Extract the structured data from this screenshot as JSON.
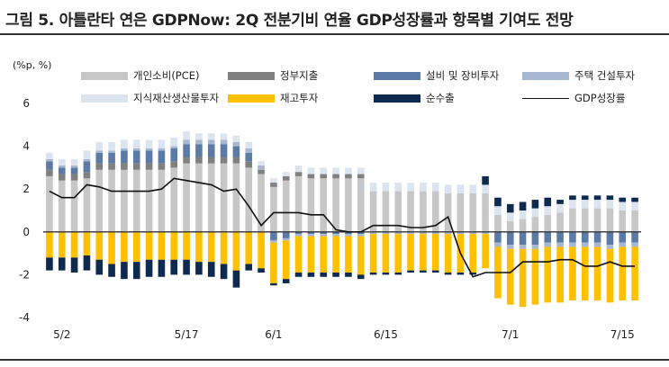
{
  "title": "그림 5. 아틀란타 연은 GDPNow: 2Q 전분기비 연율 GDP성장률과 항목별 기여도 전망",
  "unit": "(%p, %)",
  "chart_data": {
    "type": "bar",
    "stacked": true,
    "ylim": [
      -4,
      6
    ],
    "yticks": [
      -4,
      -2,
      0,
      2,
      4,
      6
    ],
    "xtick_labels": [
      {
        "index": 1,
        "label": "5/2"
      },
      {
        "index": 11,
        "label": "5/17"
      },
      {
        "index": 18,
        "label": "6/1"
      },
      {
        "index": 27,
        "label": "6/15"
      },
      {
        "index": 37,
        "label": "7/1"
      },
      {
        "index": 46,
        "label": "7/15"
      }
    ],
    "series": [
      {
        "name": "개인소비(PCE)",
        "color": "#c7c7c7",
        "values": [
          2.6,
          2.4,
          2.4,
          2.5,
          2.9,
          2.9,
          2.9,
          2.9,
          2.9,
          2.9,
          3.0,
          3.2,
          3.2,
          3.2,
          3.2,
          3.2,
          3.0,
          2.7,
          2.1,
          2.4,
          2.6,
          2.5,
          2.5,
          2.5,
          2.5,
          2.5,
          1.9,
          1.9,
          1.9,
          1.9,
          1.9,
          1.9,
          1.8,
          1.8,
          1.8,
          1.8,
          0.8,
          0.5,
          0.6,
          0.7,
          0.8,
          0.9,
          1.1,
          1.1,
          1.1,
          1.1,
          1.0,
          1.0
        ]
      },
      {
        "name": "정부지출",
        "color": "#808080",
        "values": [
          0.3,
          0.3,
          0.3,
          0.3,
          0.3,
          0.3,
          0.3,
          0.3,
          0.3,
          0.3,
          0.3,
          0.3,
          0.3,
          0.3,
          0.3,
          0.3,
          0.3,
          0.2,
          0.2,
          0.2,
          0.2,
          0.2,
          0.2,
          0.2,
          0.2,
          0.2,
          0.0,
          0.0,
          0.0,
          0.0,
          0.0,
          0.0,
          0.0,
          0.0,
          0.0,
          0.0,
          0.0,
          0.0,
          0.0,
          0.0,
          0.0,
          0.0,
          0.0,
          0.0,
          0.0,
          0.0,
          0.0,
          0.0
        ]
      },
      {
        "name": "설비 및 장비투자",
        "color": "#5b7ba6",
        "values": [
          0.4,
          0.3,
          0.3,
          0.5,
          0.5,
          0.5,
          0.6,
          0.6,
          0.6,
          0.6,
          0.6,
          0.6,
          0.6,
          0.6,
          0.6,
          0.5,
          0.4,
          0.0,
          -0.4,
          -0.3,
          -0.1,
          -0.1,
          -0.1,
          -0.1,
          -0.1,
          -0.1,
          0.0,
          0.0,
          0.0,
          0.0,
          0.0,
          0.0,
          0.0,
          0.0,
          0.0,
          0.0,
          -0.5,
          -0.6,
          -0.6,
          -0.6,
          -0.5,
          -0.5,
          -0.5,
          -0.5,
          -0.5,
          -0.6,
          -0.5,
          -0.5
        ]
      },
      {
        "name": "주택 건설투자",
        "color": "#a7b7d1",
        "values": [
          0.1,
          0.1,
          0.1,
          0.1,
          0.1,
          0.1,
          0.1,
          0.1,
          0.1,
          0.1,
          0.1,
          0.2,
          0.2,
          0.2,
          0.2,
          0.2,
          0.2,
          0.2,
          -0.1,
          -0.1,
          -0.1,
          -0.1,
          -0.1,
          -0.1,
          -0.1,
          -0.1,
          -0.1,
          -0.1,
          -0.1,
          -0.1,
          -0.1,
          -0.1,
          -0.1,
          -0.1,
          -0.1,
          -0.1,
          -0.2,
          -0.2,
          -0.2,
          -0.2,
          -0.2,
          -0.2,
          -0.2,
          -0.2,
          -0.2,
          -0.2,
          -0.2,
          -0.2
        ]
      },
      {
        "name": "지식재산생산물투자",
        "color": "#dce4ef",
        "values": [
          0.3,
          0.3,
          0.3,
          0.4,
          0.4,
          0.4,
          0.4,
          0.4,
          0.4,
          0.4,
          0.4,
          0.4,
          0.3,
          0.3,
          0.3,
          0.3,
          0.3,
          0.2,
          0.2,
          0.2,
          0.3,
          0.3,
          0.3,
          0.3,
          0.3,
          0.3,
          0.4,
          0.4,
          0.4,
          0.4,
          0.4,
          0.4,
          0.4,
          0.4,
          0.4,
          0.4,
          0.4,
          0.4,
          0.4,
          0.4,
          0.4,
          0.4,
          0.4,
          0.4,
          0.4,
          0.4,
          0.4,
          0.4
        ]
      },
      {
        "name": "재고투자",
        "color": "#ffc000",
        "values": [
          -1.2,
          -1.2,
          -1.2,
          -1.1,
          -1.3,
          -1.5,
          -1.4,
          -1.4,
          -1.3,
          -1.3,
          -1.3,
          -1.3,
          -1.4,
          -1.4,
          -1.5,
          -1.8,
          -1.5,
          -1.7,
          -1.9,
          -1.8,
          -1.7,
          -1.7,
          -1.7,
          -1.7,
          -1.7,
          -1.8,
          -1.8,
          -1.8,
          -1.8,
          -1.7,
          -1.7,
          -1.7,
          -1.8,
          -1.8,
          -1.8,
          -1.6,
          -2.4,
          -2.6,
          -2.7,
          -2.6,
          -2.6,
          -2.6,
          -2.5,
          -2.5,
          -2.5,
          -2.5,
          -2.5,
          -2.5
        ]
      },
      {
        "name": "순수출",
        "color": "#0f2a4f",
        "values": [
          -0.6,
          -0.6,
          -0.7,
          -0.7,
          -0.7,
          -0.6,
          -0.8,
          -0.8,
          -0.8,
          -0.8,
          -0.7,
          -0.7,
          -0.6,
          -0.7,
          -0.7,
          -0.8,
          -0.3,
          -0.2,
          -0.1,
          -0.2,
          -0.2,
          -0.2,
          -0.2,
          -0.2,
          -0.2,
          -0.2,
          -0.1,
          -0.1,
          -0.1,
          -0.1,
          -0.1,
          -0.1,
          -0.1,
          -0.1,
          -0.1,
          0.4,
          0.4,
          0.4,
          0.4,
          0.4,
          0.4,
          0.2,
          0.2,
          0.2,
          0.2,
          0.2,
          0.2,
          0.2
        ]
      }
    ],
    "line": {
      "name": "GDP성장률",
      "color": "#111111",
      "values": [
        1.9,
        1.6,
        1.6,
        2.2,
        2.1,
        1.9,
        1.9,
        1.9,
        1.9,
        2.0,
        2.5,
        2.4,
        2.3,
        2.2,
        1.9,
        2.0,
        1.2,
        0.3,
        0.9,
        0.9,
        0.9,
        0.8,
        0.8,
        0.1,
        0.0,
        0.0,
        0.3,
        0.3,
        0.3,
        0.2,
        0.2,
        0.3,
        0.7,
        -1.0,
        -2.1,
        -1.9,
        -1.9,
        -1.9,
        -1.4,
        -1.4,
        -1.4,
        -1.3,
        -1.3,
        -1.6,
        -1.6,
        -1.4,
        -1.6,
        -1.6
      ]
    }
  }
}
